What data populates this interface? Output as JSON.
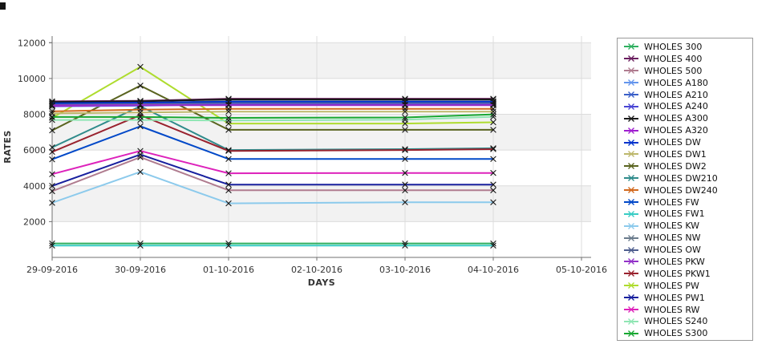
{
  "chart_data": {
    "type": "line",
    "title": "",
    "xlabel": "DAYS",
    "ylabel": "RATES",
    "x_tick_labels": [
      "29-09-2016",
      "30-09-2016",
      "01-10-2016",
      "02-10-2016",
      "03-10-2016",
      "04-10-2016",
      "05-10-2016"
    ],
    "series_x_tick_indices": [
      0,
      1,
      2,
      4,
      5
    ],
    "y_ticks": [
      2000,
      4000,
      6000,
      8000,
      10000,
      12000
    ],
    "ylim": [
      0,
      12370
    ],
    "grid": "alternating horizontal bands every 2000 units, light vertical gridlines at each date",
    "legend_position": "right",
    "band_color": "#f2f2f2",
    "marker": "x",
    "series": [
      {
        "name": "WHOLES 300",
        "color": "#2EAF5F",
        "values": [
          780,
          780,
          780,
          780,
          780
        ]
      },
      {
        "name": "WHOLES 400",
        "color": "#6B1F5F",
        "values": [
          8720,
          8750,
          8870,
          8870,
          8870
        ]
      },
      {
        "name": "WHOLES 500",
        "color": "#B07C8F",
        "values": [
          3700,
          5600,
          3750,
          3750,
          3750
        ]
      },
      {
        "name": "WHOLES A180",
        "color": "#6495ED",
        "values": [
          8440,
          8470,
          8560,
          8560,
          8560
        ]
      },
      {
        "name": "WHOLES A210",
        "color": "#3A5FC8",
        "values": [
          8550,
          8570,
          8640,
          8640,
          8640
        ]
      },
      {
        "name": "WHOLES A240",
        "color": "#4844D4",
        "values": [
          8480,
          8510,
          8600,
          8600,
          8600
        ]
      },
      {
        "name": "WHOLES A300",
        "color": "#1A1A1A",
        "values": [
          8680,
          8720,
          8830,
          8830,
          8830
        ]
      },
      {
        "name": "WHOLES A320",
        "color": "#A020D0",
        "values": [
          8460,
          8500,
          8500,
          8500,
          8500
        ]
      },
      {
        "name": "WHOLES DW",
        "color": "#0033CC",
        "values": [
          8620,
          8650,
          8700,
          8700,
          8700
        ]
      },
      {
        "name": "WHOLES DW1",
        "color": "#BDB76B",
        "values": [
          8050,
          8100,
          8150,
          8150,
          8150
        ]
      },
      {
        "name": "WHOLES DW2",
        "color": "#5A6420",
        "values": [
          7100,
          9600,
          7130,
          7130,
          7130
        ]
      },
      {
        "name": "WHOLES DW210",
        "color": "#2F8B8B",
        "values": [
          6150,
          8450,
          6000,
          6050,
          6100
        ]
      },
      {
        "name": "WHOLES DW240",
        "color": "#D2691E",
        "values": [
          8160,
          8260,
          8300,
          8300,
          8300
        ]
      },
      {
        "name": "WHOLES FW",
        "color": "#0048C8",
        "values": [
          5480,
          7330,
          5500,
          5500,
          5500
        ]
      },
      {
        "name": "WHOLES FW1",
        "color": "#38CCC4",
        "values": [
          660,
          660,
          660,
          660,
          660
        ]
      },
      {
        "name": "WHOLES KW",
        "color": "#8CCAEC",
        "values": [
          3050,
          4780,
          3020,
          3080,
          3080
        ]
      },
      {
        "name": "WHOLES NW",
        "color": "#6A7B8C",
        "values": [
          8570,
          8600,
          8660,
          8660,
          8660
        ]
      },
      {
        "name": "WHOLES OW",
        "color": "#4E5E8E",
        "values": [
          8600,
          8630,
          8730,
          8730,
          8730
        ]
      },
      {
        "name": "WHOLES PKW",
        "color": "#9232C8",
        "values": [
          8500,
          8530,
          8530,
          8530,
          8530
        ]
      },
      {
        "name": "WHOLES PKW1",
        "color": "#99222E",
        "values": [
          5900,
          7950,
          5950,
          6000,
          6050
        ]
      },
      {
        "name": "WHOLES PW",
        "color": "#AEDC2E",
        "values": [
          7800,
          10650,
          7480,
          7480,
          7550
        ]
      },
      {
        "name": "WHOLES PW1",
        "color": "#18209E",
        "values": [
          4000,
          5750,
          4070,
          4070,
          4070
        ]
      },
      {
        "name": "WHOLES RW",
        "color": "#DD22BB",
        "values": [
          4650,
          5950,
          4700,
          4720,
          4720
        ]
      },
      {
        "name": "WHOLES S240",
        "color": "#90E6B4",
        "values": [
          7680,
          7680,
          7650,
          7700,
          7860
        ]
      },
      {
        "name": "WHOLES S300",
        "color": "#18A832",
        "values": [
          7850,
          7850,
          7800,
          7820,
          7990
        ]
      }
    ]
  }
}
